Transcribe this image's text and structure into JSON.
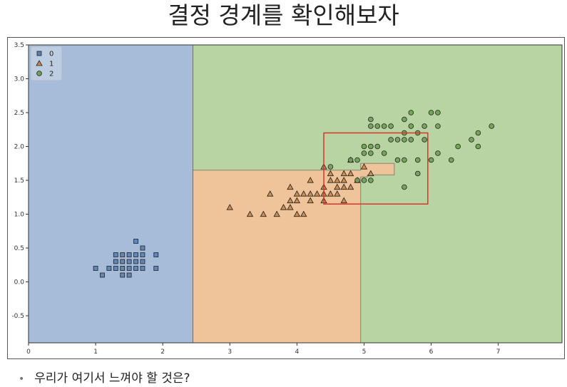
{
  "slide": {
    "title": "결정 경계를 확인해보자",
    "bullet": "우리가 여기서 느껴야 할 것은?",
    "bullet_marker": "•"
  },
  "chart_data": {
    "type": "scatter",
    "title": "",
    "xlabel": "",
    "ylabel": "",
    "xlim": [
      0,
      7.95
    ],
    "ylim": [
      -0.9,
      3.5
    ],
    "xticks": [
      0,
      1,
      2,
      3,
      4,
      5,
      6,
      7
    ],
    "yticks": [
      -0.5,
      0.0,
      0.5,
      1.0,
      1.5,
      2.0,
      2.5,
      3.0,
      3.5
    ],
    "grid": false,
    "legend_position": "top-left",
    "colors": {
      "region_0": "#a7bcd9",
      "region_1": "#efc49a",
      "region_2": "#b8d4a2",
      "marker_0": "#5b7fb0",
      "marker_1": "#c98847",
      "marker_2": "#6f9e54",
      "highlight": "#e0312b"
    },
    "regions": [
      {
        "class": "0",
        "polygon": [
          [
            0,
            -0.9
          ],
          [
            2.45,
            -0.9
          ],
          [
            2.45,
            3.5
          ],
          [
            0,
            3.5
          ]
        ]
      },
      {
        "class": "2",
        "polygon": [
          [
            2.45,
            -0.9
          ],
          [
            7.95,
            -0.9
          ],
          [
            7.95,
            3.5
          ],
          [
            2.45,
            3.5
          ]
        ]
      },
      {
        "class": "1",
        "polygon": [
          [
            2.45,
            -0.9
          ],
          [
            4.95,
            -0.9
          ],
          [
            4.95,
            1.55
          ],
          [
            5.05,
            1.55
          ],
          [
            5.05,
            1.58
          ],
          [
            5.45,
            1.58
          ],
          [
            5.45,
            1.75
          ],
          [
            4.95,
            1.75
          ],
          [
            4.95,
            1.65
          ],
          [
            2.45,
            1.65
          ]
        ]
      }
    ],
    "highlight_box": {
      "x": [
        4.4,
        5.95
      ],
      "y": [
        1.15,
        2.2
      ]
    },
    "series": [
      {
        "name": "0",
        "marker": "square",
        "points": [
          [
            1.0,
            0.2
          ],
          [
            1.1,
            0.1
          ],
          [
            1.2,
            0.2
          ],
          [
            1.3,
            0.2
          ],
          [
            1.3,
            0.3
          ],
          [
            1.4,
            0.2
          ],
          [
            1.4,
            0.1
          ],
          [
            1.5,
            0.2
          ],
          [
            1.5,
            0.1
          ],
          [
            1.5,
            0.4
          ],
          [
            1.6,
            0.2
          ],
          [
            1.6,
            0.4
          ],
          [
            1.7,
            0.4
          ],
          [
            1.7,
            0.5
          ],
          [
            1.9,
            0.4
          ],
          [
            1.9,
            0.2
          ],
          [
            1.3,
            0.4
          ],
          [
            1.4,
            0.3
          ],
          [
            1.5,
            0.3
          ],
          [
            1.6,
            0.6
          ],
          [
            1.7,
            0.3
          ],
          [
            1.7,
            0.2
          ],
          [
            1.4,
            0.4
          ],
          [
            1.6,
            0.3
          ]
        ]
      },
      {
        "name": "1",
        "marker": "triangle",
        "points": [
          [
            3.0,
            1.1
          ],
          [
            3.3,
            1.0
          ],
          [
            3.5,
            1.0
          ],
          [
            3.6,
            1.3
          ],
          [
            3.7,
            1.0
          ],
          [
            3.8,
            1.1
          ],
          [
            3.9,
            1.1
          ],
          [
            3.9,
            1.2
          ],
          [
            3.9,
            1.4
          ],
          [
            4.0,
            1.0
          ],
          [
            4.0,
            1.2
          ],
          [
            4.0,
            1.3
          ],
          [
            4.1,
            1.0
          ],
          [
            4.1,
            1.3
          ],
          [
            4.2,
            1.2
          ],
          [
            4.2,
            1.3
          ],
          [
            4.2,
            1.5
          ],
          [
            4.3,
            1.3
          ],
          [
            4.4,
            1.2
          ],
          [
            4.4,
            1.3
          ],
          [
            4.4,
            1.4
          ],
          [
            4.5,
            1.3
          ],
          [
            4.5,
            1.5
          ],
          [
            4.6,
            1.3
          ],
          [
            4.6,
            1.4
          ],
          [
            4.6,
            1.5
          ],
          [
            4.7,
            1.2
          ],
          [
            4.7,
            1.4
          ],
          [
            4.7,
            1.5
          ],
          [
            4.8,
            1.4
          ],
          [
            4.8,
            1.8
          ],
          [
            4.9,
            1.5
          ],
          [
            5.0,
            1.7
          ],
          [
            5.1,
            1.6
          ],
          [
            4.5,
            1.6
          ],
          [
            4.7,
            1.6
          ],
          [
            4.4,
            1.7
          ],
          [
            4.8,
            1.6
          ]
        ]
      },
      {
        "name": "2",
        "marker": "circle",
        "points": [
          [
            4.5,
            1.7
          ],
          [
            4.8,
            1.8
          ],
          [
            4.9,
            1.8
          ],
          [
            5.0,
            1.5
          ],
          [
            5.0,
            2.0
          ],
          [
            5.1,
            1.5
          ],
          [
            5.1,
            1.9
          ],
          [
            5.1,
            2.0
          ],
          [
            5.1,
            2.3
          ],
          [
            5.1,
            2.4
          ],
          [
            5.2,
            2.0
          ],
          [
            5.2,
            2.3
          ],
          [
            5.3,
            1.9
          ],
          [
            5.3,
            2.3
          ],
          [
            5.4,
            2.1
          ],
          [
            5.4,
            2.3
          ],
          [
            5.5,
            1.8
          ],
          [
            5.5,
            2.1
          ],
          [
            5.6,
            1.4
          ],
          [
            5.6,
            1.8
          ],
          [
            5.6,
            2.1
          ],
          [
            5.6,
            2.2
          ],
          [
            5.6,
            2.4
          ],
          [
            5.7,
            2.1
          ],
          [
            5.7,
            2.3
          ],
          [
            5.7,
            2.5
          ],
          [
            5.8,
            1.6
          ],
          [
            5.8,
            1.8
          ],
          [
            5.8,
            2.2
          ],
          [
            5.9,
            2.1
          ],
          [
            5.9,
            2.3
          ],
          [
            6.0,
            1.8
          ],
          [
            6.0,
            2.5
          ],
          [
            6.1,
            1.9
          ],
          [
            6.1,
            2.3
          ],
          [
            6.1,
            2.5
          ],
          [
            6.3,
            1.8
          ],
          [
            6.4,
            2.0
          ],
          [
            6.6,
            2.1
          ],
          [
            6.7,
            2.0
          ],
          [
            6.7,
            2.2
          ],
          [
            6.9,
            2.3
          ],
          [
            5.0,
            1.9
          ],
          [
            4.9,
            1.5
          ]
        ]
      }
    ]
  }
}
